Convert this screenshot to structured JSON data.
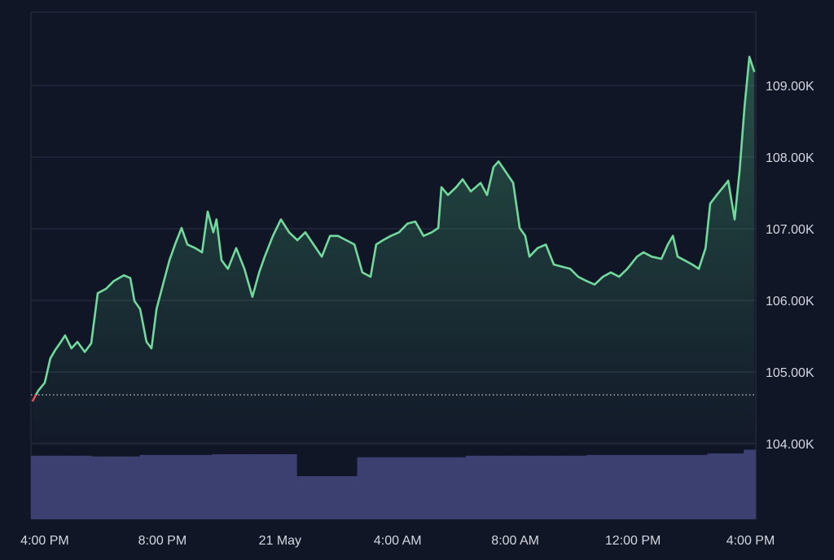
{
  "chart_data": {
    "type": "line",
    "x": [
      -0.42,
      -0.22,
      0,
      0.19,
      0.36,
      0.55,
      0.69,
      0.91,
      1.11,
      1.36,
      1.58,
      1.8,
      2.08,
      2.35,
      2.69,
      2.91,
      3.05,
      3.24,
      3.46,
      3.63,
      3.8,
      4.02,
      4.24,
      4.43,
      4.65,
      4.85,
      5.12,
      5.35,
      5.54,
      5.73,
      5.84,
      6.01,
      6.23,
      6.51,
      6.79,
      7.06,
      7.29,
      7.48,
      7.76,
      8.03,
      8.31,
      8.59,
      8.86,
      9.14,
      9.42,
      9.7,
      9.97,
      10.25,
      10.53,
      10.8,
      11.08,
      11.27,
      11.5,
      11.77,
      12.05,
      12.33,
      12.6,
      12.88,
      13.16,
      13.38,
      13.49,
      13.71,
      13.99,
      14.21,
      14.49,
      14.82,
      15.04,
      15.26,
      15.43,
      15.65,
      15.93,
      16.15,
      16.34,
      16.48,
      16.76,
      17.04,
      17.31,
      17.59,
      17.87,
      18.14,
      18.42,
      18.7,
      18.98,
      19.25,
      19.53,
      19.81,
      20.14,
      20.36,
      20.64,
      20.97,
      21.19,
      21.36,
      21.52,
      21.75,
      22.02,
      22.24,
      22.47,
      22.63,
      22.85,
      23.07,
      23.24,
      23.46,
      23.63,
      23.8,
      23.96,
      24.13
    ],
    "series": [
      {
        "color": "#72d99c",
        "below_color": "#e0525a",
        "values": [
          104.59,
          104.74,
          104.85,
          105.19,
          105.31,
          105.42,
          105.51,
          105.33,
          105.42,
          105.28,
          105.4,
          106.1,
          106.16,
          106.27,
          106.35,
          106.31,
          105.99,
          105.88,
          105.42,
          105.33,
          105.88,
          106.22,
          106.56,
          106.78,
          107.01,
          106.78,
          106.73,
          106.67,
          107.24,
          106.95,
          107.13,
          106.56,
          106.44,
          106.73,
          106.44,
          106.05,
          106.39,
          106.61,
          106.9,
          107.13,
          106.95,
          106.84,
          106.95,
          106.78,
          106.61,
          106.9,
          106.9,
          106.84,
          106.78,
          106.39,
          106.33,
          106.78,
          106.84,
          106.9,
          106.95,
          107.07,
          107.1,
          106.9,
          106.95,
          107.01,
          107.58,
          107.47,
          107.58,
          107.69,
          107.52,
          107.64,
          107.47,
          107.86,
          107.94,
          107.81,
          107.64,
          107.01,
          106.9,
          106.61,
          106.73,
          106.78,
          106.5,
          106.47,
          106.44,
          106.33,
          106.27,
          106.22,
          106.33,
          106.39,
          106.33,
          106.44,
          106.61,
          106.67,
          106.61,
          106.58,
          106.78,
          106.9,
          106.61,
          106.56,
          106.5,
          106.44,
          106.73,
          107.35,
          107.47,
          107.58,
          107.67,
          107.13,
          107.81,
          108.72,
          109.4,
          109.19
        ]
      }
    ],
    "baseline": 104.68,
    "xlim": [
      -0.47,
      24.18
    ],
    "xticks": [
      {
        "value": 0,
        "label": "4:00 PM"
      },
      {
        "value": 4,
        "label": "8:00 PM"
      },
      {
        "value": 8,
        "label": "21 May"
      },
      {
        "value": 12,
        "label": "4:00 AM"
      },
      {
        "value": 16,
        "label": "8:00 AM"
      },
      {
        "value": 20,
        "label": "12:00 PM"
      },
      {
        "value": 24,
        "label": "4:00 PM"
      }
    ],
    "ylim": [
      103,
      110
    ],
    "yticks": [
      {
        "value": 104,
        "label": "104.00K"
      },
      {
        "value": 105,
        "label": "105.00K"
      },
      {
        "value": 106,
        "label": "106.00K"
      },
      {
        "value": 107,
        "label": "107.00K"
      },
      {
        "value": 108,
        "label": "108.00K"
      },
      {
        "value": 109,
        "label": "109.00K"
      }
    ],
    "grid": true,
    "volume": {
      "color": "#3b4070",
      "vlim": [
        0,
        100
      ],
      "values": [
        84,
        84,
        84,
        84,
        84,
        83,
        83,
        83,
        83,
        85,
        85,
        85,
        85,
        85,
        85,
        86,
        86,
        86,
        86,
        86,
        86,
        86,
        57,
        57,
        57,
        57,
        57,
        82,
        82,
        82,
        82,
        82,
        82,
        82,
        82,
        82,
        84,
        84,
        84,
        84,
        84,
        84,
        84,
        84,
        84,
        84,
        85,
        85,
        85,
        85,
        85,
        85,
        85,
        85,
        85,
        85,
        87,
        87,
        87,
        92
      ]
    }
  }
}
